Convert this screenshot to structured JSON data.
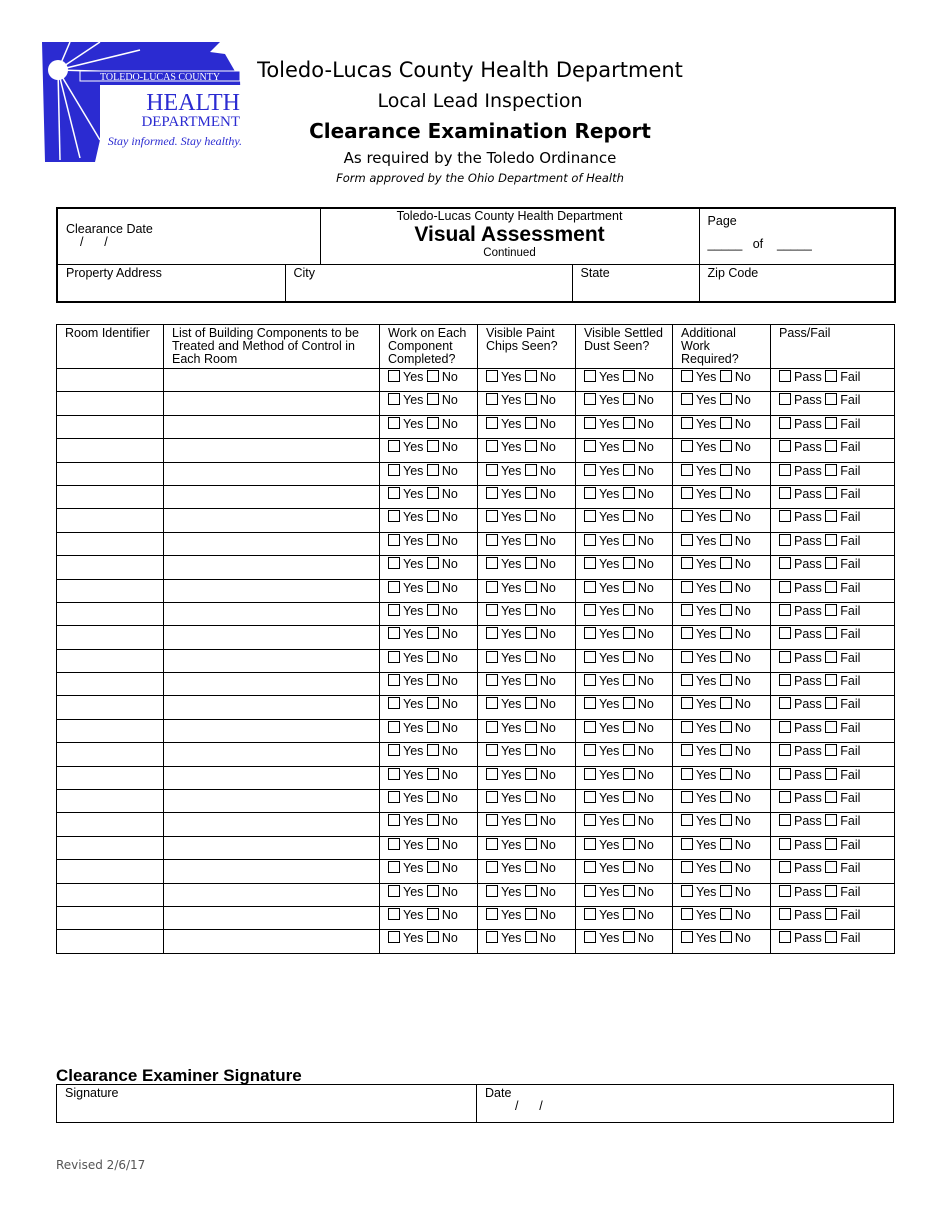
{
  "logo": {
    "line1": "TOLEDO-LUCAS COUNTY",
    "line2": "HEALTH",
    "line3": "DEPARTMENT",
    "tagline": "Stay informed. Stay healthy.",
    "color": "#2b2bd1"
  },
  "header": {
    "org": "Toledo-Lucas County Health Department",
    "subtitle": "Local Lead Inspection",
    "title": "Clearance Examination Report",
    "required": "As required by the Toledo Ordinance",
    "approved": "Form approved by the Ohio Department of Health"
  },
  "top": {
    "clearance_date_label": "Clearance Date",
    "date_slashes": "/      /",
    "form_org": "Toledo-Lucas County Health Department",
    "form_title": "Visual Assessment",
    "form_sub": "Continued",
    "page_label": "Page",
    "page_of": "_____   of    _____",
    "property_address": "Property Address",
    "city": "City",
    "state": "State",
    "zip": "Zip Code"
  },
  "grid": {
    "columns": [
      "Room Identifier",
      "List of Building Components to be Treated and Method of Control in Each Room",
      "Work on Each Component Completed?",
      "Visible Paint Chips Seen?",
      "Visible Settled Dust Seen?",
      "Additional Work Required?",
      "Pass/Fail"
    ],
    "yes": "Yes",
    "no": "No",
    "pass": "Pass",
    "fail": "Fail",
    "row_count": 25
  },
  "signature": {
    "heading": "Clearance Examiner Signature",
    "signature_label": "Signature",
    "date_label": "Date",
    "date_slashes": "/      /"
  },
  "footer": {
    "revised": "Revised 2/6/17"
  }
}
